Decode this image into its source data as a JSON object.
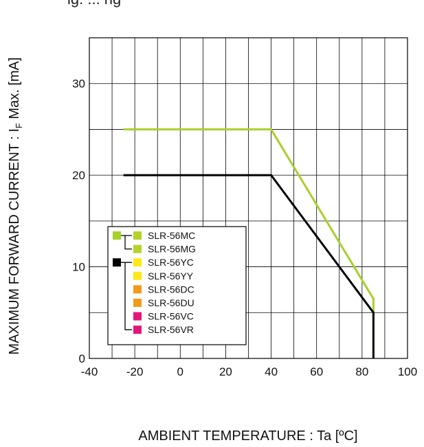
{
  "header": {
    "caption_fragment": "ig. ... ng"
  },
  "chart_data": {
    "type": "line",
    "xlabel": "AMBIENT TEMPERATURE : Ta [ºC]",
    "ylabel": {
      "main": "MAXIMUM FORWARD CURRENT : I",
      "sub": "F",
      "rest": " Max. [mA]"
    },
    "xlim": [
      -40,
      100
    ],
    "ylim": [
      0,
      35
    ],
    "x_ticks": [
      "-40",
      "-20",
      "0",
      "20",
      "40",
      "60",
      "80",
      "100"
    ],
    "y_ticks": [
      {
        "value": 0,
        "label": "0"
      },
      {
        "value": 10,
        "label": "10"
      },
      {
        "value": 20,
        "label": "20"
      },
      {
        "value": 30,
        "label": "30"
      }
    ],
    "grid": true,
    "series": [
      {
        "color": "#a8cf2a",
        "x": [
          -25,
          40,
          85,
          85
        ],
        "y": [
          25,
          25,
          6.5,
          0
        ]
      },
      {
        "color": "#000000",
        "x": [
          -25,
          40,
          85,
          85
        ],
        "y": [
          20,
          20,
          5,
          0
        ]
      }
    ],
    "legend": {
      "placement": "lower-left",
      "groups": [
        {
          "marker_color": "#a8cf2a",
          "entries": [
            0,
            1
          ]
        },
        {
          "marker_color": "#000000",
          "entries": [
            2,
            3,
            4,
            5,
            6,
            7
          ]
        }
      ],
      "entries": [
        {
          "label": "SLR-56MC",
          "color": "#b5d22a"
        },
        {
          "label": "SLR-56MG",
          "color": "#b5d22a"
        },
        {
          "label": "SLR-56YC",
          "color": "#ffe816"
        },
        {
          "label": "SLR-56YY",
          "color": "#ffe816"
        },
        {
          "label": "SLR-56DC",
          "color": "#f39a1b"
        },
        {
          "label": "SLR-56DU",
          "color": "#f39a1b"
        },
        {
          "label": "SLR-56VC",
          "color": "#e4157a"
        },
        {
          "label": "SLR-56VR",
          "color": "#e4157a"
        }
      ]
    }
  }
}
